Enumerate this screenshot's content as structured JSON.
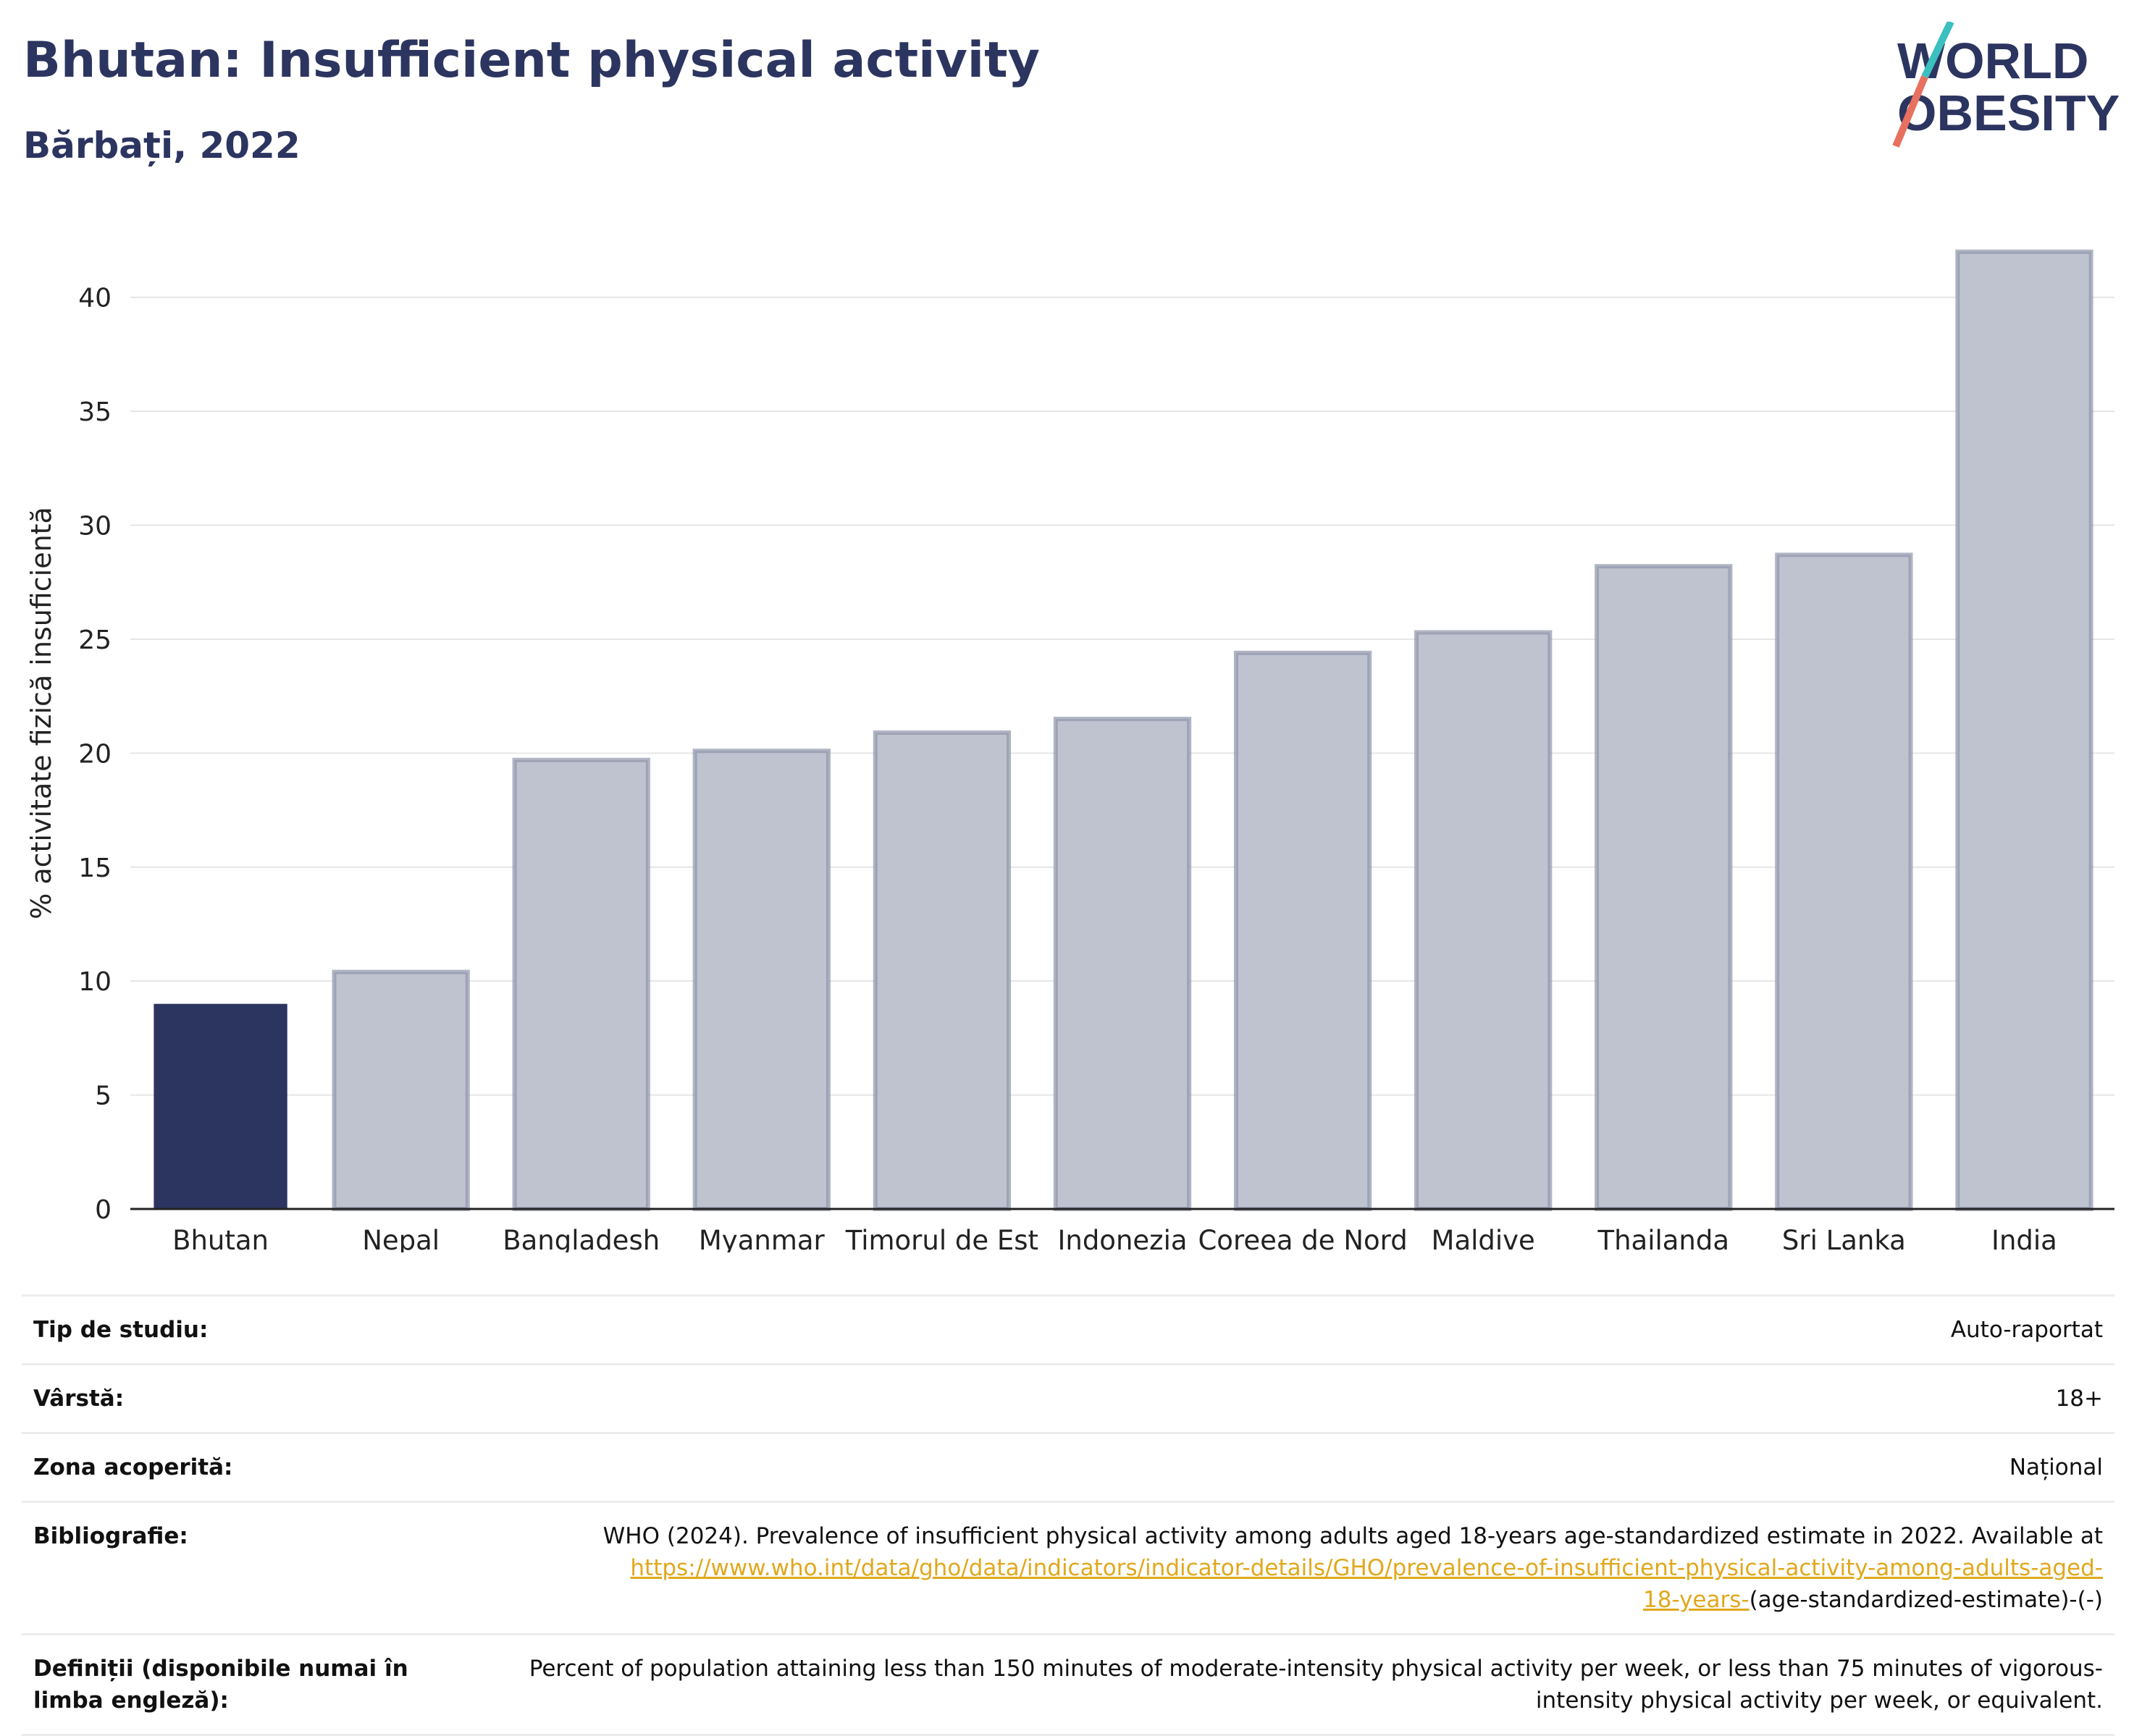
{
  "header": {
    "title": "Bhutan: Insufficient physical activity",
    "subtitle": "Bărbați, 2022"
  },
  "logo": {
    "line1": "WORLD",
    "line2": "OBESITY",
    "colors": {
      "text": "#2c3560",
      "slash_top": "#3bbfbf",
      "slash_bottom": "#e8705f"
    }
  },
  "chart_data": {
    "type": "bar",
    "title": "Bhutan: Insufficient physical activity",
    "subtitle": "Bărbați, 2022",
    "xlabel": "",
    "ylabel": "% activitate fizică insuficientă",
    "ylim": [
      0,
      42.5
    ],
    "yticks": [
      0,
      5,
      10,
      15,
      20,
      25,
      30,
      35,
      40
    ],
    "grid": true,
    "legend": "none",
    "categories": [
      "Bhutan",
      "Nepal",
      "Bangladesh",
      "Myanmar",
      "Timorul de Est",
      "Indonezia",
      "Coreea de Nord",
      "Maldive",
      "Thailanda",
      "Sri Lanka",
      "India"
    ],
    "values": [
      9.0,
      10.4,
      19.7,
      20.1,
      20.9,
      21.5,
      24.4,
      25.3,
      28.2,
      28.7,
      42.0
    ],
    "highlight": "Bhutan",
    "colors": {
      "highlight": "#2c3560",
      "other_fill": "#bfc3d0",
      "other_stroke": "#8e94aa"
    }
  },
  "meta": {
    "rows": [
      {
        "label": "Tip de studiu:",
        "value": "Auto-raportat"
      },
      {
        "label": "Vârstă:",
        "value": "18+"
      },
      {
        "label": "Zona acoperită:",
        "value": "Național"
      }
    ],
    "bibliography": {
      "label": "Bibliografie:",
      "text": "WHO (2024). Prevalence of insufficient physical activity among adults aged 18-years age-standardized estimate in 2022. Available at",
      "link1": "https://www.who.int/data/gho/data/indicators/indicator-details/GHO/prevalence-of-insufficient-physical-activity-among-adults-aged-",
      "link2": "18-years-",
      "tail": "(age-standardized-estimate)-(-)"
    },
    "definitions": {
      "label": "Definiții (disponibile numai în limba engleză):",
      "text": "Percent of population attaining less than 150 minutes of moderate-intensity physical activity per week, or less than 75 minutes of vigorous-intensity physical activity per week, or equivalent."
    }
  }
}
